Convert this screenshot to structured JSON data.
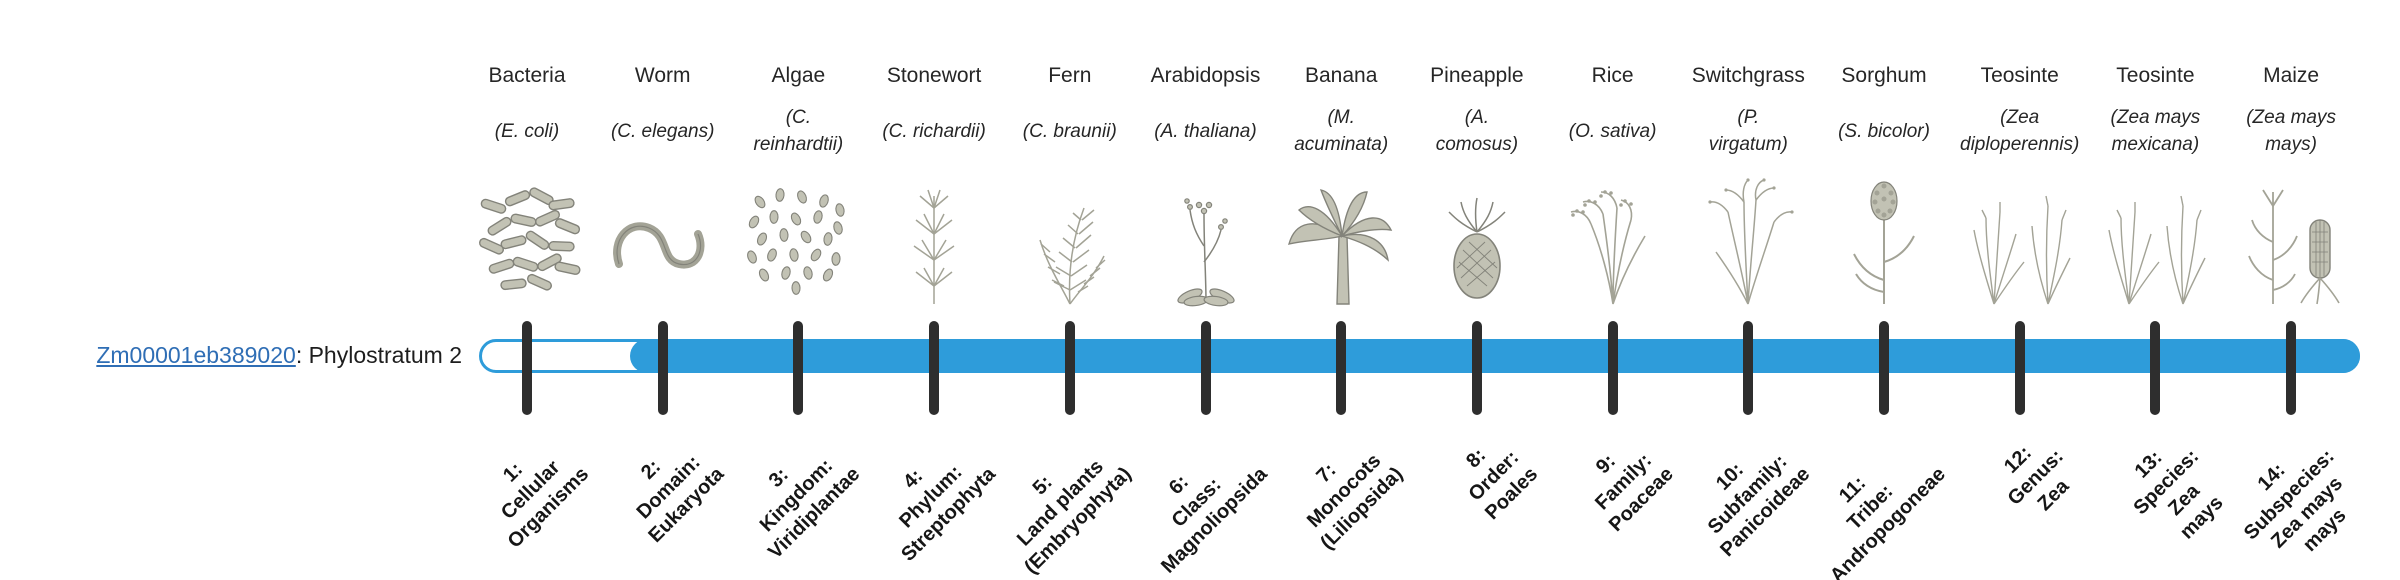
{
  "colors": {
    "bar_blue": "#2e9cda",
    "tick_dark": "#2e2e2e",
    "link_blue": "#2f6eb5",
    "text_dark": "#1d1d1d"
  },
  "gene": {
    "id": "Zm00001eb389020",
    "suffix": ": Phylostratum 2"
  },
  "timeline": {
    "phylostratum": 2,
    "num_strata": 14
  },
  "strata": [
    {
      "number": "1",
      "organism": "Bacteria",
      "scientific": "(E. coli)",
      "icon": "bacteria-illustration",
      "stage_label": "1:\nCellular\nOrganisms"
    },
    {
      "number": "2",
      "organism": "Worm",
      "scientific": "(C. elegans)",
      "icon": "worm-illustration",
      "stage_label": "2:\nDomain:\nEukaryota"
    },
    {
      "number": "3",
      "organism": "Algae",
      "scientific": "(C.\nreinhardtii)",
      "icon": "algae-illustration",
      "stage_label": "3:\nKingdom:\nViridiplantae"
    },
    {
      "number": "4",
      "organism": "Stonewort",
      "scientific": "(C. richardii)",
      "icon": "stonewort-illustration",
      "stage_label": "4:\nPhylum:\nStreptophyta"
    },
    {
      "number": "5",
      "organism": "Fern",
      "scientific": "(C. braunii)",
      "icon": "fern-illustration",
      "stage_label": "5:\nLand plants\n(Embryophyta)"
    },
    {
      "number": "6",
      "organism": "Arabidopsis",
      "scientific": "(A. thaliana)",
      "icon": "arabidopsis-illustration",
      "stage_label": "6:\nClass:\nMagnoliopsida"
    },
    {
      "number": "7",
      "organism": "Banana",
      "scientific": "(M.\nacuminata)",
      "icon": "banana-illustration",
      "stage_label": "7:\nMonocots\n(Liliopsida)"
    },
    {
      "number": "8",
      "organism": "Pineapple",
      "scientific": "(A.\ncomosus)",
      "icon": "pineapple-illustration",
      "stage_label": "8:\nOrder:\nPoales"
    },
    {
      "number": "9",
      "organism": "Rice",
      "scientific": "(O. sativa)",
      "icon": "rice-illustration",
      "stage_label": "9:\nFamily:\nPoaceae"
    },
    {
      "number": "10",
      "organism": "Switchgrass",
      "scientific": "(P.\nvirgatum)",
      "icon": "switchgrass-illustration",
      "stage_label": "10:\nSubfamily:\nPanicoideae"
    },
    {
      "number": "11",
      "organism": "Sorghum",
      "scientific": "(S. bicolor)",
      "icon": "sorghum-illustration",
      "stage_label": "11:\nTribe:\nAndropogoneae"
    },
    {
      "number": "12",
      "organism": "Teosinte",
      "scientific": "(Zea\ndiploperennis)",
      "icon": "teosinte-illustration",
      "stage_label": "12:\nGenus:\nZea"
    },
    {
      "number": "13",
      "organism": "Teosinte",
      "scientific": "(Zea mays\nmexicana)",
      "icon": "teosinte-illustration",
      "stage_label": "13:\nSpecies:\nZea\nmays"
    },
    {
      "number": "14",
      "organism": "Maize",
      "scientific": "(Zea mays\nmays)",
      "icon": "maize-illustration",
      "stage_label": "14:\nSubspecies:\nZea mays\nmays"
    }
  ]
}
